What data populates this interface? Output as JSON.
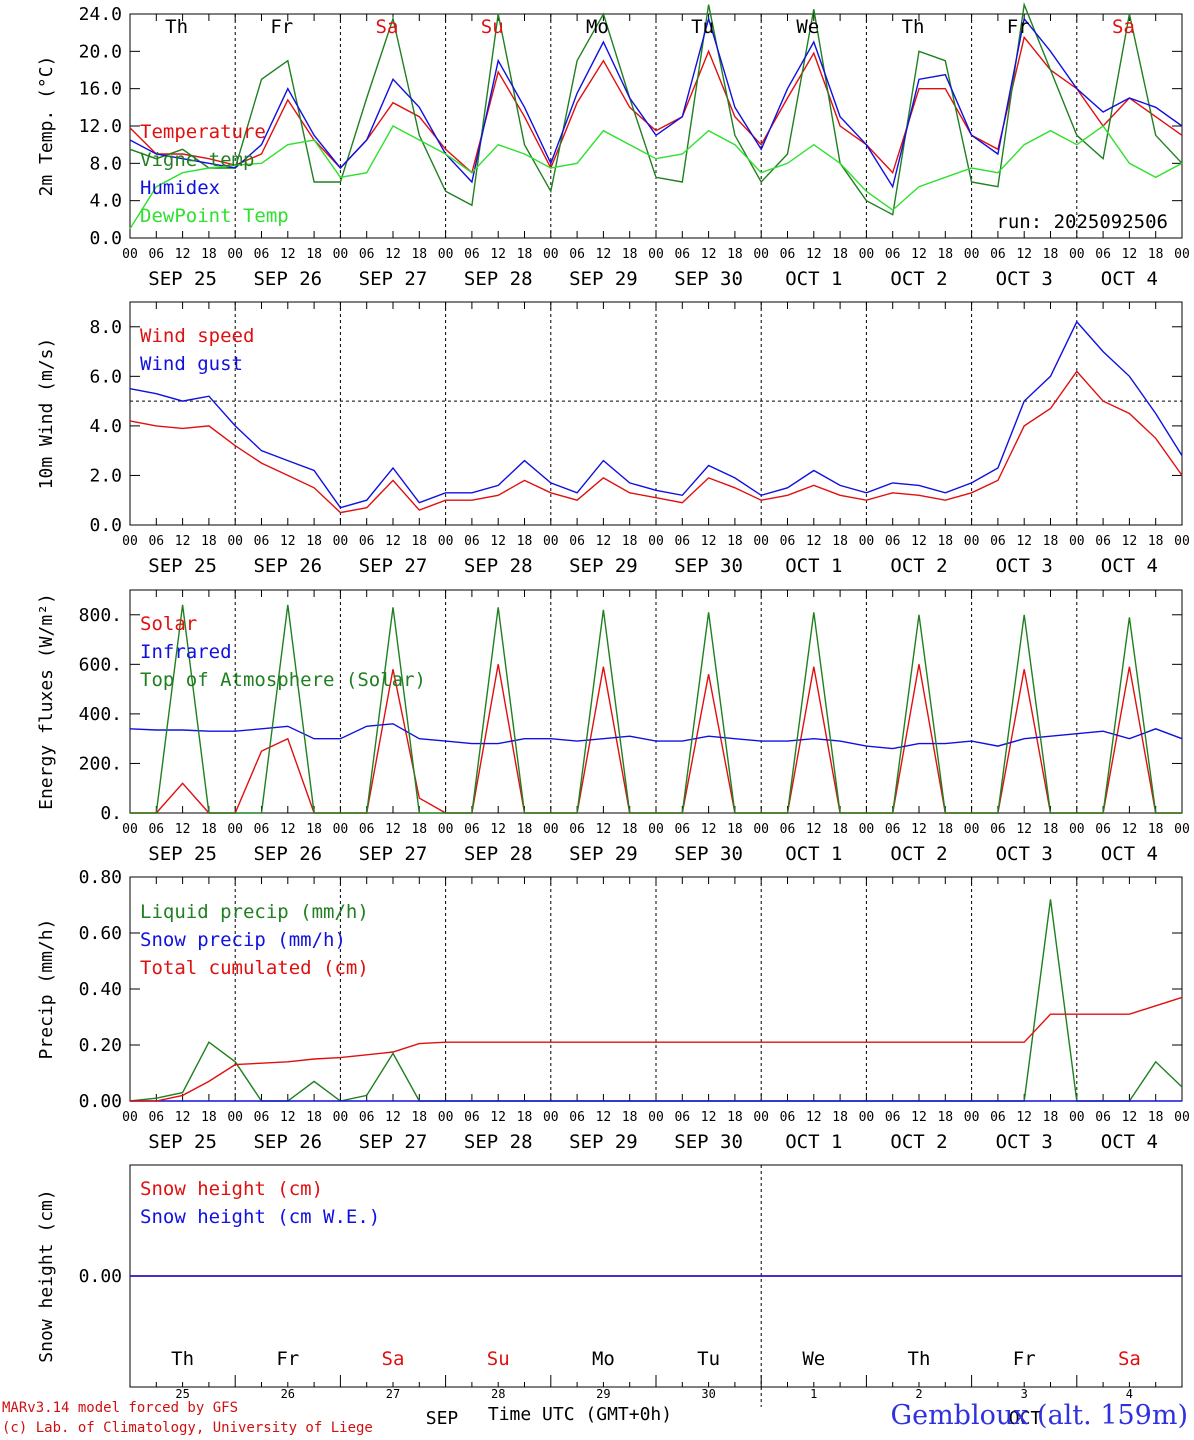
{
  "station": "Gembloux (alt. 159m)",
  "credits": [
    "MARv3.14 model forced by GFS",
    "(c) Lab. of Climatology, University of Liege"
  ],
  "run_label": "run: 2025092506",
  "x_axis": {
    "title": "Time UTC (GMT+0h)",
    "hour_ticks": [
      "00",
      "06",
      "12",
      "18"
    ],
    "date_labels": [
      "SEP 25",
      "SEP 26",
      "SEP 27",
      "SEP 28",
      "SEP 29",
      "SEP 30",
      "OCT  1",
      "OCT  2",
      "OCT  3",
      "OCT  4"
    ],
    "day_names": [
      "Th",
      "Fr",
      "Sa",
      "Su",
      "Mo",
      "Tu",
      "We",
      "Th",
      "Fr",
      "Sa"
    ],
    "day_name_colors": [
      "#000000",
      "#000000",
      "#e01010",
      "#e01010",
      "#000000",
      "#000000",
      "#000000",
      "#000000",
      "#000000",
      "#e01010"
    ],
    "day_numbers": [
      "25",
      "26",
      "27",
      "28",
      "29",
      "30",
      "1",
      "2",
      "3",
      "4"
    ],
    "month_labels": [
      "SEP",
      "OCT"
    ]
  },
  "colors": {
    "red": "#e01010",
    "blue": "#1010e0",
    "darkgreen": "#208020",
    "lightgreen": "#30e030",
    "black": "#000000"
  },
  "chart_data": [
    {
      "type": "line",
      "id": "temperature",
      "ylabel": "2m Temp. (°C)",
      "ylim": [
        0,
        24
      ],
      "yticks": [
        "0.0",
        "4.0",
        "8.0",
        "12.0",
        "16.0",
        "20.0",
        "24.0"
      ],
      "x_unit": "hours since 2025-09-25 00 UTC",
      "x": [
        0,
        6,
        12,
        18,
        24,
        30,
        36,
        42,
        48,
        54,
        60,
        66,
        72,
        78,
        84,
        90,
        96,
        102,
        108,
        114,
        120,
        126,
        132,
        138,
        144,
        150,
        156,
        162,
        168,
        174,
        180,
        186,
        192,
        198,
        204,
        210,
        216,
        222,
        228,
        234,
        240
      ],
      "series": [
        {
          "name": "Temperature",
          "color": "#e01010",
          "values": [
            11.8,
            9.0,
            9.0,
            8.5,
            7.8,
            9.0,
            14.8,
            10.5,
            7.5,
            10.5,
            14.5,
            13.0,
            9.5,
            7.0,
            17.8,
            13.0,
            7.5,
            14.5,
            19.0,
            14.0,
            11.5,
            13.0,
            20.0,
            13.0,
            10.0,
            15.0,
            19.8,
            12.0,
            10.0,
            7.0,
            16.0,
            16.0,
            11.0,
            9.5,
            21.5,
            18.0,
            16.0,
            12.0,
            15.0,
            13.0,
            11.0
          ]
        },
        {
          "name": "Vigne temp",
          "color": "#208020",
          "values": [
            9.5,
            8.5,
            9.5,
            7.5,
            7.5,
            17.0,
            19.0,
            6.0,
            6.0,
            15.0,
            23.5,
            11.0,
            5.0,
            3.5,
            24.0,
            10.0,
            5.0,
            19.0,
            24.0,
            15.0,
            6.5,
            6.0,
            25.0,
            11.0,
            6.0,
            9.0,
            24.5,
            8.0,
            4.0,
            2.5,
            20.0,
            19.0,
            6.0,
            5.5,
            25.0,
            18.0,
            11.0,
            8.5,
            24.0,
            11.0,
            8.0
          ]
        },
        {
          "name": "Humidex",
          "color": "#1010e0",
          "values": [
            10.5,
            9.0,
            8.5,
            8.0,
            7.5,
            10.0,
            16.0,
            11.0,
            7.5,
            10.5,
            17.0,
            14.0,
            9.0,
            6.0,
            19.0,
            14.0,
            8.0,
            15.5,
            21.0,
            15.0,
            11.0,
            13.0,
            23.5,
            14.0,
            9.5,
            16.0,
            21.0,
            13.0,
            10.0,
            5.5,
            17.0,
            17.5,
            11.0,
            9.0,
            23.5,
            20.0,
            16.0,
            13.5,
            15.0,
            14.0,
            12.0
          ]
        },
        {
          "name": "DewPoint Temp",
          "color": "#30e030",
          "values": [
            1.0,
            5.5,
            7.0,
            7.5,
            7.8,
            8.0,
            10.0,
            10.5,
            6.5,
            7.0,
            12.0,
            10.5,
            9.0,
            7.0,
            10.0,
            9.0,
            7.5,
            8.0,
            11.5,
            10.0,
            8.5,
            9.0,
            11.5,
            10.0,
            7.0,
            8.0,
            10.0,
            8.0,
            5.0,
            3.0,
            5.5,
            6.5,
            7.5,
            7.0,
            10.0,
            11.5,
            10.0,
            12.0,
            8.0,
            6.5,
            8.0
          ]
        }
      ]
    },
    {
      "type": "line",
      "id": "wind",
      "ylabel": "10m Wind (m/s)",
      "ylim": [
        0,
        9
      ],
      "yticks": [
        "0.0",
        "2.0",
        "4.0",
        "6.0",
        "8.0"
      ],
      "reference_line": 5.0,
      "x": [
        0,
        6,
        12,
        18,
        24,
        30,
        36,
        42,
        48,
        54,
        60,
        66,
        72,
        78,
        84,
        90,
        96,
        102,
        108,
        114,
        120,
        126,
        132,
        138,
        144,
        150,
        156,
        162,
        168,
        174,
        180,
        186,
        192,
        198,
        204,
        210,
        216,
        222,
        228,
        234,
        240
      ],
      "series": [
        {
          "name": "Wind speed",
          "color": "#e01010",
          "values": [
            4.2,
            4.0,
            3.9,
            4.0,
            3.2,
            2.5,
            2.0,
            1.5,
            0.5,
            0.7,
            1.8,
            0.6,
            1.0,
            1.0,
            1.2,
            1.8,
            1.3,
            1.0,
            1.9,
            1.3,
            1.1,
            0.9,
            1.9,
            1.5,
            1.0,
            1.2,
            1.6,
            1.2,
            1.0,
            1.3,
            1.2,
            1.0,
            1.3,
            1.8,
            4.0,
            4.7,
            6.2,
            5.0,
            4.5,
            3.5,
            2.0
          ]
        },
        {
          "name": "Wind gust",
          "color": "#1010e0",
          "values": [
            5.5,
            5.3,
            5.0,
            5.2,
            4.0,
            3.0,
            2.6,
            2.2,
            0.7,
            1.0,
            2.3,
            0.9,
            1.3,
            1.3,
            1.6,
            2.6,
            1.7,
            1.3,
            2.6,
            1.7,
            1.4,
            1.2,
            2.4,
            1.9,
            1.2,
            1.5,
            2.2,
            1.6,
            1.3,
            1.7,
            1.6,
            1.3,
            1.7,
            2.3,
            5.0,
            6.0,
            8.2,
            7.0,
            6.0,
            4.5,
            2.8
          ]
        }
      ]
    },
    {
      "type": "line",
      "id": "energy",
      "ylabel": "Energy fluxes (W/m²)",
      "ylim": [
        0,
        900
      ],
      "yticks": [
        "0.",
        "200.",
        "400.",
        "600.",
        "800."
      ],
      "x": [
        0,
        6,
        12,
        18,
        24,
        30,
        36,
        42,
        48,
        54,
        60,
        66,
        72,
        78,
        84,
        90,
        96,
        102,
        108,
        114,
        120,
        126,
        132,
        138,
        144,
        150,
        156,
        162,
        168,
        174,
        180,
        186,
        192,
        198,
        204,
        210,
        216,
        222,
        228,
        234,
        240
      ],
      "series": [
        {
          "name": "Solar",
          "color": "#e01010",
          "values": [
            0,
            0,
            120,
            0,
            0,
            250,
            300,
            0,
            0,
            0,
            580,
            60,
            0,
            0,
            600,
            0,
            0,
            0,
            590,
            0,
            0,
            0,
            560,
            0,
            0,
            0,
            590,
            0,
            0,
            0,
            600,
            0,
            0,
            0,
            580,
            0,
            0,
            0,
            590,
            0,
            0
          ]
        },
        {
          "name": "Infrared",
          "color": "#1010e0",
          "values": [
            340,
            335,
            335,
            330,
            330,
            340,
            350,
            300,
            300,
            350,
            360,
            300,
            290,
            280,
            280,
            300,
            300,
            290,
            300,
            310,
            290,
            290,
            310,
            300,
            290,
            290,
            300,
            290,
            270,
            260,
            280,
            280,
            290,
            270,
            300,
            310,
            320,
            330,
            300,
            340,
            300
          ]
        },
        {
          "name": "Top of Atmosphere (Solar)",
          "color": "#208020",
          "values": [
            0,
            0,
            840,
            0,
            0,
            0,
            840,
            0,
            0,
            0,
            830,
            0,
            0,
            0,
            830,
            0,
            0,
            0,
            820,
            0,
            0,
            0,
            810,
            0,
            0,
            0,
            810,
            0,
            0,
            0,
            800,
            0,
            0,
            0,
            800,
            0,
            0,
            0,
            790,
            0,
            0
          ]
        }
      ]
    },
    {
      "type": "line",
      "id": "precip",
      "ylabel": "Precip (mm/h)",
      "ylim": [
        0,
        0.8
      ],
      "yticks": [
        "0.00",
        "0.20",
        "0.40",
        "0.60",
        "0.80"
      ],
      "x": [
        0,
        6,
        12,
        18,
        24,
        30,
        36,
        42,
        48,
        54,
        60,
        66,
        72,
        78,
        84,
        90,
        96,
        102,
        108,
        114,
        120,
        126,
        132,
        138,
        144,
        150,
        156,
        162,
        168,
        174,
        180,
        186,
        192,
        198,
        204,
        210,
        216,
        222,
        228,
        234,
        240
      ],
      "series": [
        {
          "name": "Liquid precip (mm/h)",
          "color": "#208020",
          "values": [
            0,
            0.01,
            0.03,
            0.21,
            0.14,
            0,
            0,
            0.07,
            0,
            0.02,
            0.17,
            0,
            0,
            0,
            0,
            0,
            0,
            0,
            0,
            0,
            0,
            0,
            0,
            0,
            0,
            0,
            0,
            0,
            0,
            0,
            0,
            0,
            0,
            0,
            0,
            0.72,
            0,
            0,
            0,
            0.14,
            0.05
          ]
        },
        {
          "name": "Snow precip (mm/h)",
          "color": "#1010e0",
          "values": [
            0,
            0,
            0,
            0,
            0,
            0,
            0,
            0,
            0,
            0,
            0,
            0,
            0,
            0,
            0,
            0,
            0,
            0,
            0,
            0,
            0,
            0,
            0,
            0,
            0,
            0,
            0,
            0,
            0,
            0,
            0,
            0,
            0,
            0,
            0,
            0,
            0,
            0,
            0,
            0,
            0
          ]
        },
        {
          "name": "Total cumulated (cm)",
          "color": "#e01010",
          "values": [
            0,
            0,
            0.02,
            0.07,
            0.13,
            0.135,
            0.14,
            0.15,
            0.155,
            0.165,
            0.175,
            0.205,
            0.21,
            0.21,
            0.21,
            0.21,
            0.21,
            0.21,
            0.21,
            0.21,
            0.21,
            0.21,
            0.21,
            0.21,
            0.21,
            0.21,
            0.21,
            0.21,
            0.21,
            0.21,
            0.21,
            0.21,
            0.21,
            0.21,
            0.21,
            0.31,
            0.31,
            0.31,
            0.31,
            0.34,
            0.37
          ]
        }
      ]
    },
    {
      "type": "line",
      "id": "snow",
      "ylabel": "Snow height (cm)",
      "ylim": [
        -1,
        1
      ],
      "yticks": [
        "0.00"
      ],
      "x": [
        0,
        240
      ],
      "series": [
        {
          "name": "Snow height (cm)",
          "color": "#e01010",
          "values": [
            0,
            0
          ]
        },
        {
          "name": "Snow height (cm W.E.)",
          "color": "#1010e0",
          "values": [
            0,
            0
          ]
        }
      ]
    }
  ]
}
